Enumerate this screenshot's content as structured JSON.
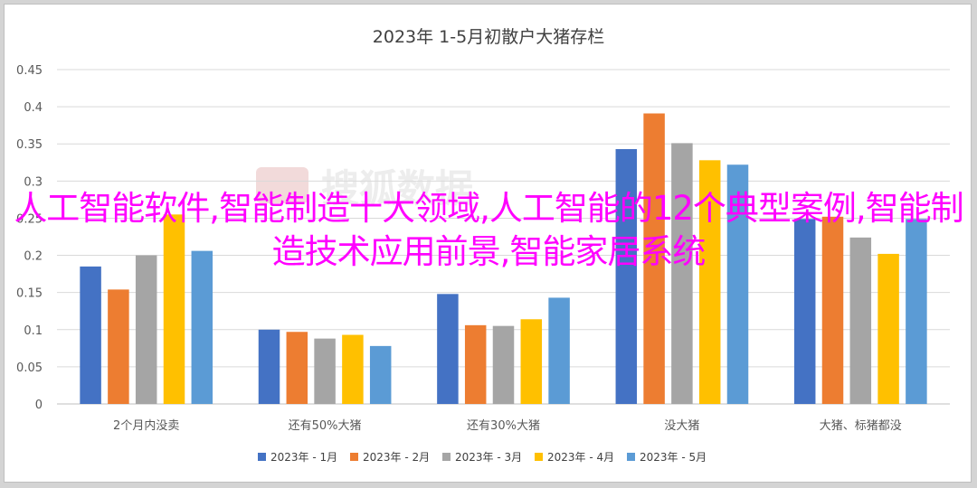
{
  "overlay_text": "人工智能软件,智能制造十大领域,人工智能的12个典型案例,智能制造技术应用前景,智能家居系统",
  "watermark_text": "搜狐数据",
  "colors": {
    "background": "#ffffff",
    "overlay": "#ff00ff",
    "series": [
      "#4472c4",
      "#ed7d31",
      "#a5a5a5",
      "#ffc000",
      "#5b9bd5"
    ]
  },
  "chart_data": {
    "type": "bar",
    "title": "2023年 1-5月初散户大猪存栏",
    "xlabel": "",
    "ylabel": "",
    "ylim": [
      0,
      0.45
    ],
    "yticks": [
      "0",
      "0.05",
      "0.1",
      "0.15",
      "0.2",
      "0.25",
      "0.3",
      "0.35",
      "0.4",
      "0.45"
    ],
    "categories": [
      "2个月内没卖",
      "还有50%大猪",
      "还有30%大猪",
      "没大猪",
      "大猪、标猪都没"
    ],
    "series": [
      {
        "name": "2023年 - 1月",
        "values": [
          0.185,
          0.1,
          0.148,
          0.343,
          0.249
        ]
      },
      {
        "name": "2023年 - 2月",
        "values": [
          0.154,
          0.097,
          0.106,
          0.391,
          0.252
        ]
      },
      {
        "name": "2023年 - 3月",
        "values": [
          0.2,
          0.088,
          0.105,
          0.351,
          0.224
        ]
      },
      {
        "name": "2023年 - 4月",
        "values": [
          0.255,
          0.093,
          0.114,
          0.328,
          0.202
        ]
      },
      {
        "name": "2023年 - 5月",
        "values": [
          0.206,
          0.078,
          0.143,
          0.322,
          0.249
        ]
      }
    ],
    "grid": true,
    "legend": "bottom"
  }
}
